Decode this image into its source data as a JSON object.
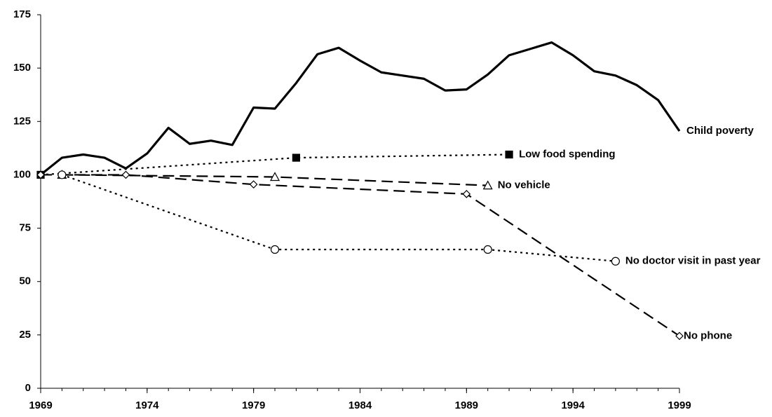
{
  "chart_data": {
    "type": "line",
    "xlim": [
      1969,
      1999
    ],
    "xticks": [
      1969,
      1974,
      1979,
      1984,
      1989,
      1994,
      1999
    ],
    "ylim": [
      0,
      175
    ],
    "yticks": [
      0,
      25,
      50,
      75,
      100,
      125,
      150,
      175
    ],
    "grid": false,
    "series": [
      {
        "name": "Child poverty",
        "color": "#000000",
        "style": "solid",
        "marker": "none",
        "x": [
          1969,
          1970,
          1971,
          1972,
          1973,
          1974,
          1975,
          1976,
          1977,
          1978,
          1979,
          1980,
          1981,
          1982,
          1983,
          1984,
          1985,
          1986,
          1987,
          1988,
          1989,
          1990,
          1991,
          1992,
          1993,
          1994,
          1995,
          1996,
          1997,
          1998,
          1999
        ],
        "values": [
          100,
          108,
          109.5,
          108,
          103,
          110,
          122,
          114.5,
          116,
          114,
          131.5,
          131,
          143,
          156.5,
          159.5,
          153.5,
          148,
          146.5,
          145,
          139.5,
          140,
          147,
          156,
          159,
          162,
          156,
          148.5,
          146.5,
          142,
          135,
          120.5
        ]
      },
      {
        "name": "Low food spending",
        "color": "#000000",
        "style": "dotted",
        "marker": "square",
        "x": [
          1969,
          1981,
          1991
        ],
        "values": [
          100,
          108,
          109.5
        ]
      },
      {
        "name": "No vehicle",
        "color": "#000000",
        "style": "dashed",
        "marker": "triangle",
        "x": [
          1970,
          1980,
          1990
        ],
        "values": [
          100,
          99,
          95
        ]
      },
      {
        "name": "No doctor visit in past year",
        "color": "#000000",
        "style": "dotted",
        "marker": "circle",
        "x": [
          1970,
          1980,
          1990,
          1996
        ],
        "values": [
          100,
          65,
          65,
          59.5
        ]
      },
      {
        "name": "No phone",
        "color": "#000000",
        "style": "dashed",
        "marker": "diamond",
        "x": [
          1969,
          1973,
          1979,
          1989,
          1999
        ],
        "values": [
          100,
          100,
          95.5,
          91,
          24.5
        ]
      }
    ]
  }
}
